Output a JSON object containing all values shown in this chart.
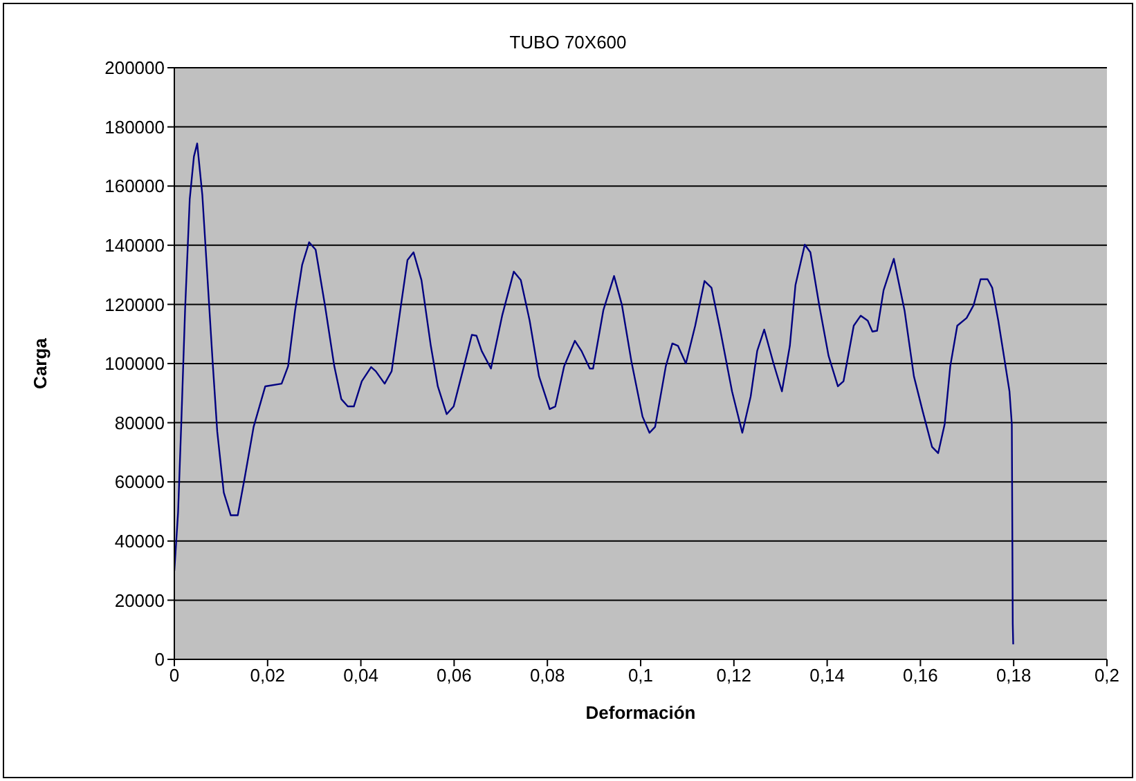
{
  "chart_data": {
    "type": "line",
    "title": "TUBO 70X600",
    "xlabel": "Deformación",
    "ylabel": "Carga",
    "xlim": [
      0,
      0.2
    ],
    "xticks": [
      0,
      {
        "value": 0.02,
        "label": "0,02"
      },
      {
        "value": 0.04,
        "label": "0,04"
      },
      {
        "value": 0.06,
        "label": "0,06"
      },
      {
        "value": 0.08,
        "label": "0,08"
      },
      {
        "value": 0.1,
        "label": "0,1"
      },
      {
        "value": 0.12,
        "label": "0,12"
      },
      {
        "value": 0.14,
        "label": "0,14"
      },
      {
        "value": 0.16,
        "label": "0,16"
      },
      {
        "value": 0.18,
        "label": "0,18"
      },
      {
        "value": 0.2,
        "label": "0,2"
      }
    ],
    "ylim": [
      0,
      200000
    ],
    "yticks": [
      0,
      20000,
      40000,
      60000,
      80000,
      100000,
      120000,
      140000,
      160000,
      180000,
      200000
    ],
    "grid": "y",
    "legend": false,
    "marker": "none",
    "line_style": "solid",
    "series": [
      {
        "color": "#000080",
        "x": [
          0,
          0.0008,
          0.0015,
          0.0023,
          0.0033,
          0.0042,
          0.0049,
          0.006,
          0.007,
          0.0082,
          0.0092,
          0.0106,
          0.0121,
          0.0136,
          0.0151,
          0.017,
          0.0195,
          0.023,
          0.0244,
          0.0259,
          0.0274,
          0.0289,
          0.0303,
          0.0323,
          0.0343,
          0.0358,
          0.0372,
          0.0385,
          0.0402,
          0.0422,
          0.0432,
          0.0451,
          0.0466,
          0.0486,
          0.05,
          0.0513,
          0.053,
          0.055,
          0.0565,
          0.0584,
          0.0599,
          0.0624,
          0.0638,
          0.0648,
          0.0659,
          0.0679,
          0.0703,
          0.0728,
          0.0743,
          0.0762,
          0.0782,
          0.0805,
          0.0817,
          0.0836,
          0.0859,
          0.0873,
          0.0891,
          0.0898,
          0.092,
          0.0943,
          0.096,
          0.098,
          0.1004,
          0.1019,
          0.1031,
          0.1054,
          0.1068,
          0.108,
          0.1097,
          0.1117,
          0.1137,
          0.1152,
          0.1171,
          0.1196,
          0.1218,
          0.1236,
          0.125,
          0.1265,
          0.1285,
          0.1303,
          0.132,
          0.1332,
          0.1352,
          0.1364,
          0.1383,
          0.1403,
          0.1423,
          0.1435,
          0.1457,
          0.1472,
          0.1487,
          0.1497,
          0.1507,
          0.1521,
          0.1543,
          0.1566,
          0.1586,
          0.1605,
          0.1625,
          0.1638,
          0.1652,
          0.1664,
          0.1679,
          0.1699,
          0.1714,
          0.1729,
          0.1744,
          0.1754,
          0.1767,
          0.1779,
          0.1791,
          0.1796,
          0.1797,
          0.1798,
          0.1799
        ],
        "values": [
          29900,
          49600,
          80300,
          118000,
          155600,
          170000,
          174400,
          157000,
          131600,
          100900,
          77000,
          56400,
          48700,
          48700,
          61500,
          78600,
          92300,
          93200,
          99100,
          118000,
          133300,
          141000,
          138500,
          119700,
          99100,
          88000,
          85500,
          85500,
          94000,
          98800,
          97400,
          93200,
          97400,
          119700,
          135000,
          137600,
          128200,
          106000,
          92300,
          82900,
          85500,
          100900,
          109700,
          109400,
          104300,
          98300,
          116200,
          131100,
          128200,
          114500,
          95700,
          84600,
          85500,
          99100,
          107700,
          104300,
          98300,
          98300,
          118000,
          129600,
          119700,
          100900,
          82100,
          76600,
          78600,
          99100,
          106800,
          106000,
          100000,
          112800,
          127900,
          125600,
          111100,
          90600,
          76600,
          88900,
          104300,
          111500,
          100000,
          90600,
          106000,
          126500,
          140200,
          137600,
          119700,
          102600,
          92300,
          94000,
          112800,
          116200,
          114500,
          110800,
          111100,
          124800,
          135400,
          117900,
          95700,
          83800,
          71800,
          69700,
          79500,
          99100,
          112800,
          115400,
          119700,
          128500,
          128500,
          125600,
          114500,
          102600,
          90600,
          79500,
          46200,
          12000,
          5100
        ]
      }
    ]
  }
}
